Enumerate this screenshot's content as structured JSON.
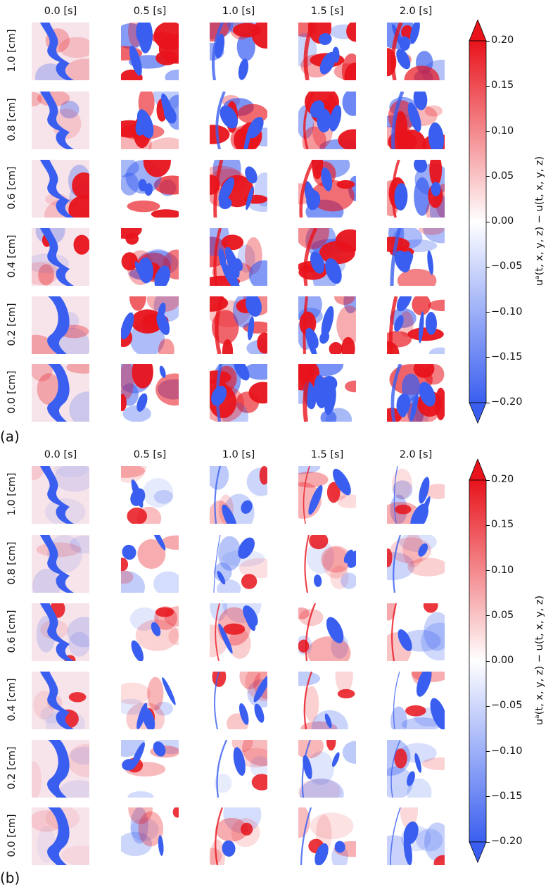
{
  "columns": [
    "0.0 [s]",
    "0.5 [s]",
    "1.0 [s]",
    "1.5 [s]",
    "2.0 [s]"
  ],
  "rows": [
    "1.0 [cm]",
    "0.8 [cm]",
    "0.6 [cm]",
    "0.4 [cm]",
    "0.2 [cm]",
    "0.0 [cm]"
  ],
  "panels": [
    {
      "letter": "(a)",
      "intensity": "strong"
    },
    {
      "letter": "(b)",
      "intensity": "weak"
    }
  ],
  "colorbar": {
    "ticks": [
      "0.20",
      "0.15",
      "0.10",
      "0.05",
      "0.00",
      "−0.05",
      "−0.10",
      "−0.15",
      "−0.20"
    ],
    "label": "uᵃ(t, x, y, z) − u(t, x, y, z)",
    "colors": {
      "max": "#e8131b",
      "mid": "#ffffff",
      "min": "#3a5ff0"
    }
  }
}
